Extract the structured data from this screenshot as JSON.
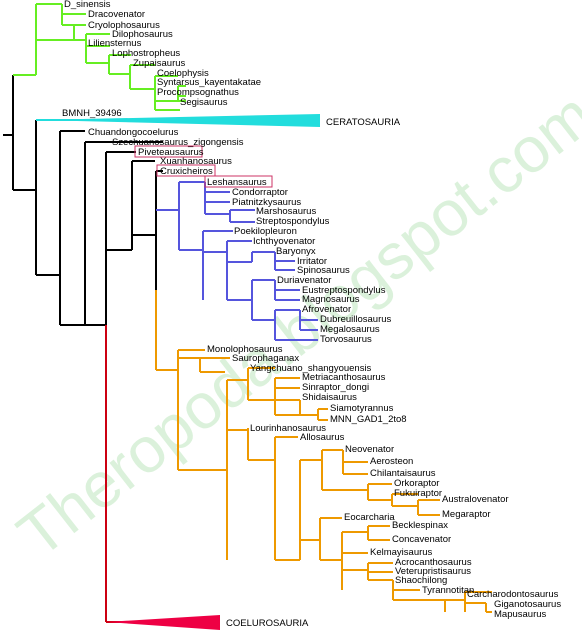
{
  "colors": {
    "root": "#000000",
    "green": "#66ee22",
    "cyan": "#22dddd",
    "blue": "#5555dd",
    "orange": "#ee9900",
    "red": "#cc0011",
    "highlight_box": "#cc3366",
    "watermark": "#7fd07f"
  },
  "watermark": "Theropoda.blogspot.com",
  "taxa": {
    "D_sinensis": "D_sinensis",
    "Dracovenator": "Dracovenator",
    "Cryolophosaurus": "Cryolophosaurus",
    "Dilophosaurus": "Dilophosaurus",
    "Liliensternus": "Liliensternus",
    "Lophostropheus": "Lophostropheus",
    "Zupaysaurus": "Zupaisaurus",
    "Coelophysis": "Coelophysis",
    "Syntarsus": "Syntarsus_kayentakatae",
    "Procompsognathus": "Procompsognathus",
    "Segisaurus": "Segisaurus",
    "BMNH": "BMNH_39496",
    "Ceratosauria": "CERATOSAURIA",
    "Chuandongocoelurus": "Chuandongocoelurus",
    "Szechuanosaurus": "Szechuanosaurus_zigongensis",
    "Piveteausaurus": "Piveteausaurus",
    "Xuanhanosaurus": "Xuanhanosaurus",
    "Cruxicheiros": "Cruxicheiros",
    "Leshansaurus": "Leshansaurus",
    "Condorraptor": "Condorraptor",
    "Piatnitzkysaurus": "Piatnitzkysaurus",
    "Marshosaurus": "Marshosaurus",
    "Streptospondylus": "Streptospondylus",
    "Poekilopleuron": "Poekilopleuron",
    "Ichthyovenator": "Ichthyovenator",
    "Baryonyx": "Baryonyx",
    "Irritator": "Irritator",
    "Spinosaurus": "Spinosaurus",
    "Duriavenator": "Duriavenator",
    "Eustreptospondylus": "Eustreptospondylus",
    "Magnosaurus": "Magnosaurus",
    "Afrovenator": "Afrovenator",
    "Dubreuillosaurus": "Dubreuillosaurus",
    "Megalosaurus": "Megalosaurus",
    "Torvosaurus": "Torvosaurus",
    "Monolophosaurus": "Monolophosaurus",
    "Saurophaganax": "Saurophaganax",
    "Yangchuano": "Yangchuano_shangyouensis",
    "Metriacanthosaurus": "Metriacanthosaurus",
    "Sinraptor": "Sinraptor_dongi",
    "Shidaisaurus": "Shidaisaurus",
    "Siamotyrannus": "Siamotyrannus",
    "MNN": "MNN_GAD1_2to8",
    "Lourinhanosaurus": "Lourinhanosaurus",
    "Allosaurus": "Allosaurus",
    "Neovenator": "Neovenator",
    "Aerosteon": "Aerosteon",
    "Chilantaisaurus": "Chilantaisaurus",
    "Orkoraptor": "Orkoraptor",
    "Fukuiraptor": "Fukuiraptor",
    "Australovenator": "Australovenator",
    "Megaraptor": "Megaraptor",
    "Eocarcharia": "Eocarcharia",
    "Becklespinax": "Becklespinax",
    "Concavenator": "Concavenator",
    "Kelmayisaurus": "Kelmayisaurus",
    "Acrocanthosaurus": "Acrocanthosaurus",
    "Veterupristisaurus": "Veterupristisaurus",
    "Shaochilong": "Shaochilong",
    "Tyrannotitan": "Tyrannotitan",
    "Carcharodontosaurus": "Carcharodontosaurus",
    "Giganotosaurus": "Giganotosaurus",
    "Mapusaurus": "Mapusaurus",
    "Coelurosauria": "COELUROSAURIA"
  }
}
